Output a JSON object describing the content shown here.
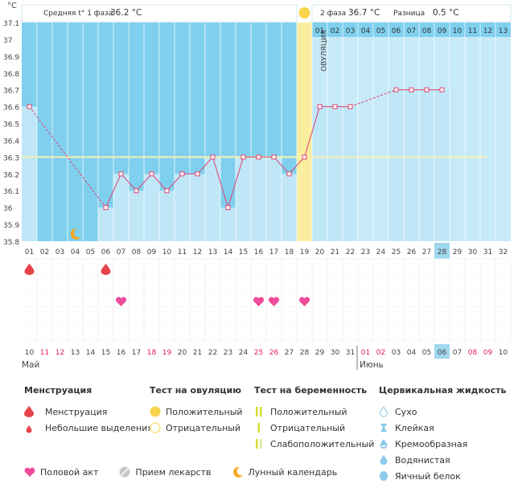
{
  "chart_data": {
    "type": "line",
    "y_unit": "°C",
    "ylim": [
      35.8,
      37.1
    ],
    "y_ticks": [
      "35.8",
      "35.9",
      "36",
      "36.1",
      "36.2",
      "36.3",
      "36.4",
      "36.5",
      "36.6",
      "36.7",
      "36.8",
      "36.9",
      "37",
      "37.1"
    ],
    "cycle_days": [
      "01",
      "02",
      "03",
      "04",
      "05",
      "06",
      "07",
      "08",
      "09",
      "10",
      "11",
      "12",
      "13",
      "14",
      "15",
      "16",
      "17",
      "18",
      "19",
      "20",
      "21",
      "22",
      "23",
      "24",
      "25",
      "26",
      "27",
      "28",
      "29",
      "30",
      "31",
      "32"
    ],
    "temperatures": [
      36.6,
      null,
      null,
      null,
      null,
      36.0,
      36.2,
      36.1,
      36.2,
      36.1,
      36.2,
      36.2,
      36.3,
      36.0,
      36.3,
      36.3,
      36.3,
      36.2,
      36.3,
      36.6,
      36.6,
      36.6,
      null,
      null,
      36.7,
      36.7,
      36.7,
      36.7,
      null,
      null,
      null,
      null
    ],
    "coverline": 36.3,
    "ovulation_day": "19",
    "ovulation_label": "ОВУЛЯЦИЯ",
    "phase1_label": "Средняя t° 1 фаза",
    "phase1_value": "36.2 °C",
    "phase2_label": "2 фаза",
    "phase2_value": "36.7 °C",
    "diff_label": "Разница",
    "diff_value": "0.5 °C",
    "dpo_days": [
      "01",
      "02",
      "03",
      "04",
      "05",
      "06",
      "07",
      "08",
      "09",
      "10",
      "11",
      "12",
      "13"
    ],
    "today_cycle_day": "28",
    "calendar_dates": [
      "10",
      "11",
      "12",
      "13",
      "14",
      "15",
      "16",
      "17",
      "18",
      "19",
      "20",
      "21",
      "22",
      "23",
      "24",
      "25",
      "26",
      "27",
      "28",
      "29",
      "30",
      "31",
      "01",
      "02",
      "03",
      "04",
      "05",
      "06",
      "07",
      "08",
      "09",
      "10"
    ],
    "weekend_dates_idx": [
      1,
      2,
      8,
      9,
      15,
      16,
      22,
      23,
      29,
      30
    ],
    "today_date": "06",
    "month_may": "Май",
    "month_june": "Июнь",
    "menstruation_days": [
      "01",
      "06"
    ],
    "intercourse_days": [
      "07",
      "16",
      "17",
      "19"
    ],
    "moon_day": "04",
    "colors": {
      "sky": "#7fd0ee",
      "light_blue": "#c7eaf8",
      "bar_fill": "#bfe7f8",
      "line": "#e0416e",
      "ovulation": "#fbeea0",
      "coverline": "#f7f0b0",
      "today": "#9fd8ef",
      "weekend": "#e0224e",
      "drop": "#e8424a",
      "heart": "#f04c9c",
      "moon": "#f5a81f",
      "sun": "#f8d44c",
      "pos_test": "#d4dc34",
      "faint_test": "#dde99a",
      "cm_icon": "#8cc8ea",
      "pill": "#c8c8c8"
    }
  },
  "legend": {
    "menstruation": {
      "title": "Менструация",
      "items": [
        "Менструация",
        "Небольшие выделения"
      ]
    },
    "ovulation_test": {
      "title": "Тест на овуляцию",
      "items": [
        "Положительный",
        "Отрицательный"
      ]
    },
    "pregnancy_test": {
      "title": "Тест на беременность",
      "items": [
        "Положительный",
        "Отрицательный",
        "Слабоположительный"
      ]
    },
    "cervical": {
      "title": "Цервикальная жидкость",
      "items": [
        "Сухо",
        "Клейкая",
        "Кремообразная",
        "Водянистая",
        "Яичный белок"
      ]
    },
    "bottom": [
      "Половой акт",
      "Прием лекарств",
      "Лунный календарь"
    ]
  }
}
